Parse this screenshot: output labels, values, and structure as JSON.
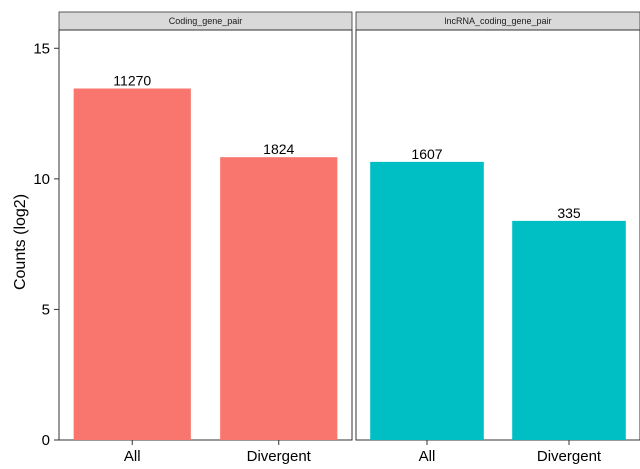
{
  "chart_data": {
    "type": "bar",
    "ylabel": "Counts (log2)",
    "xlabel": "",
    "ylim": [
      0,
      15.7
    ],
    "yticks": [
      0,
      5,
      10,
      15
    ],
    "grid": false,
    "panels": [
      {
        "title": "Coding_gene_pair",
        "color": "#F8766D",
        "categories": [
          "All",
          "Divergent"
        ],
        "values": [
          13.46,
          10.83
        ],
        "labels": [
          "11270",
          "1824"
        ]
      },
      {
        "title": "lncRNA_coding_gene_pair",
        "color": "#00BFC4",
        "categories": [
          "All",
          "Divergent"
        ],
        "values": [
          10.65,
          8.39
        ],
        "labels": [
          "1607",
          "335"
        ]
      }
    ]
  }
}
